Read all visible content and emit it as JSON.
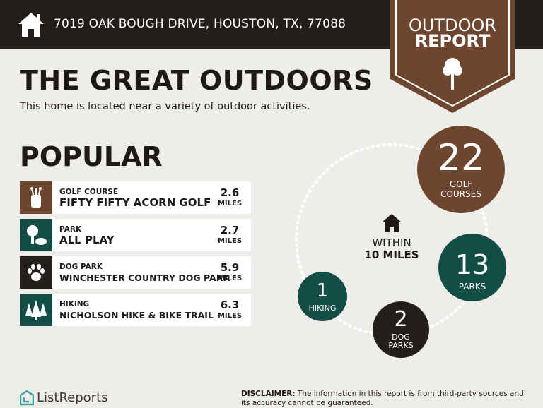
{
  "header": {
    "address": "7019 OAK BOUGH DRIVE, HOUSTON, TX, 77088",
    "icon": "home-icon"
  },
  "badge": {
    "line1": "OUTDOOR",
    "line2": "REPORT",
    "icon": "tree-icon",
    "color": "#6e4630"
  },
  "headline": "THE GREAT OUTDOORS",
  "subheadline": "This home is located near a variety of outdoor activities.",
  "popular": {
    "title": "POPULAR",
    "items": [
      {
        "category": "GOLF COURSE",
        "name": "FIFTY FIFTY ACORN GOLF",
        "distance": "2.6",
        "unit": "MILES",
        "icon": "golf-bag-icon",
        "color": "#6e4630"
      },
      {
        "category": "PARK",
        "name": "ALL PLAY",
        "distance": "2.7",
        "unit": "MILES",
        "icon": "park-icon",
        "color": "#134e46"
      },
      {
        "category": "DOG PARK",
        "name": "WINCHESTER COUNTRY DOG PARK",
        "distance": "5.9",
        "unit": "MILES",
        "icon": "paw-icon",
        "color": "#231e1c"
      },
      {
        "category": "HIKING",
        "name": "NICHOLSON HIKE & BIKE TRAIL",
        "distance": "6.3",
        "unit": "MILES",
        "icon": "pine-trees-icon",
        "color": "#134e46"
      }
    ]
  },
  "within": {
    "line1": "WITHIN",
    "line2": "10 MILES",
    "icon": "home-icon"
  },
  "stats": [
    {
      "count": "22",
      "label1": "GOLF",
      "label2": "COURSES",
      "color": "#6e4630"
    },
    {
      "count": "13",
      "label1": "PARKS",
      "label2": "",
      "color": "#134e46"
    },
    {
      "count": "2",
      "label1": "DOG",
      "label2": "PARKS",
      "color": "#231e1c"
    },
    {
      "count": "1",
      "label1": "HIKING",
      "label2": "",
      "color": "#134e46"
    }
  ],
  "footer": {
    "logo": "ListReports",
    "disclaimer_label": "DISCLAIMER:",
    "disclaimer_text": " The information in this report is from third-party sources and its accuracy cannot be guaranteed."
  }
}
